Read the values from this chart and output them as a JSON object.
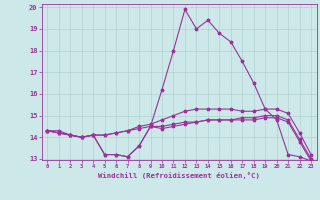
{
  "background_color": "#cce8e8",
  "grid_color": "#aacccc",
  "line_color": "#993399",
  "xlabel": "Windchill (Refroidissement éolien,°C)",
  "x_hours": [
    0,
    1,
    2,
    3,
    4,
    5,
    6,
    7,
    8,
    9,
    10,
    11,
    12,
    13,
    14,
    15,
    16,
    17,
    18,
    19,
    20,
    21,
    22,
    23
  ],
  "line1": [
    14.3,
    14.3,
    14.1,
    14.0,
    14.1,
    13.2,
    13.2,
    13.1,
    13.6,
    14.5,
    16.2,
    18.0,
    19.9,
    19.0,
    19.4,
    18.8,
    18.4,
    17.5,
    16.5,
    15.3,
    14.8,
    13.2,
    13.1,
    12.9
  ],
  "line2": [
    14.3,
    14.2,
    14.1,
    14.0,
    14.1,
    14.1,
    14.2,
    14.3,
    14.4,
    14.5,
    14.5,
    14.6,
    14.7,
    14.7,
    14.8,
    14.8,
    14.8,
    14.9,
    14.9,
    15.0,
    15.0,
    14.8,
    13.9,
    13.0
  ],
  "line3": [
    14.3,
    14.2,
    14.1,
    14.0,
    14.1,
    14.1,
    14.2,
    14.3,
    14.5,
    14.6,
    14.8,
    15.0,
    15.2,
    15.3,
    15.3,
    15.3,
    15.3,
    15.2,
    15.2,
    15.3,
    15.3,
    15.1,
    14.2,
    13.2
  ],
  "line4": [
    14.3,
    14.2,
    14.1,
    14.0,
    14.1,
    13.2,
    13.2,
    13.1,
    13.6,
    14.5,
    14.4,
    14.5,
    14.6,
    14.7,
    14.8,
    14.8,
    14.8,
    14.8,
    14.8,
    14.9,
    14.9,
    14.7,
    13.8,
    12.9
  ],
  "ylim": [
    13,
    20
  ],
  "yticks": [
    13,
    14,
    15,
    16,
    17,
    18,
    19,
    20
  ]
}
